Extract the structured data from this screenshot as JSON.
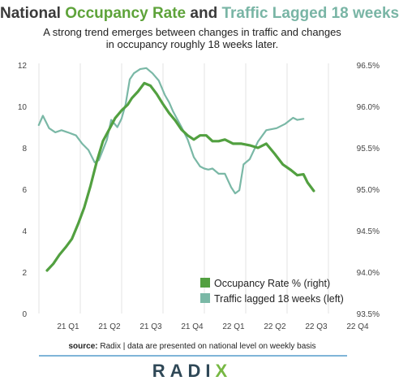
{
  "header": {
    "title_part1": "National ",
    "title_part2": "Occupancy Rate",
    "title_part3": " and ",
    "title_part4": "Traffic Lagged 18 weeks",
    "subtitle_line1": "A strong trend emerges between changes in traffic and changes",
    "subtitle_line2": "in occupancy roughly 18 weeks later."
  },
  "colors": {
    "occupancy": "#52a040",
    "traffic": "#7ab8a6",
    "title_occupancy": "#5ea33a",
    "title_traffic": "#79b5a5",
    "rule": "#7fb5d8",
    "grid": "#e3e3e3"
  },
  "chart_data": {
    "type": "line",
    "title": "National Occupancy Rate and Traffic Lagged 18 weeks",
    "x_categories": [
      "21 Q1",
      "21 Q2",
      "21 Q3",
      "21 Q4",
      "22 Q1",
      "22 Q2",
      "22 Q3",
      "22 Q4"
    ],
    "left_axis": {
      "ticks": [
        "0",
        "2",
        "4",
        "6",
        "8",
        "10",
        "12"
      ],
      "ylim": [
        0,
        12
      ]
    },
    "right_axis": {
      "ticks": [
        "93.5%",
        "94.0%",
        "94.5%",
        "95.0%",
        "95.5%",
        "96.0%",
        "96.5%"
      ],
      "ylim": [
        93.5,
        96.5
      ]
    },
    "grid": "vertical",
    "legend_position": "bottom-right",
    "series": [
      {
        "name": "Occupancy Rate % (right)",
        "axis": "right",
        "x": [
          0,
          0.15,
          0.3,
          0.45,
          0.6,
          0.75,
          0.9,
          1.05,
          1.2,
          1.35,
          1.5,
          1.65,
          1.8,
          1.95,
          2.05,
          2.2,
          2.35,
          2.5,
          2.65,
          2.8,
          2.95,
          3.1,
          3.25,
          3.4,
          3.55,
          3.7,
          3.85,
          4.0,
          4.15,
          4.3,
          4.5,
          4.7,
          4.9,
          5.1,
          5.3,
          5.5,
          5.7,
          5.9,
          6.05,
          6.2,
          6.3,
          6.45
        ],
        "values": [
          94.02,
          94.1,
          94.21,
          94.3,
          94.4,
          94.58,
          94.78,
          95.04,
          95.33,
          95.58,
          95.72,
          95.86,
          95.95,
          96.02,
          96.1,
          96.18,
          96.28,
          96.25,
          96.15,
          96.03,
          95.92,
          95.83,
          95.72,
          95.65,
          95.6,
          95.65,
          95.65,
          95.58,
          95.58,
          95.6,
          95.55,
          95.55,
          95.53,
          95.5,
          95.55,
          95.43,
          95.3,
          95.23,
          95.17,
          95.18,
          95.08,
          94.98
        ]
      },
      {
        "name": "Traffic lagged 18 weeks (left)",
        "axis": "left",
        "x": [
          -0.2,
          -0.1,
          0.05,
          0.2,
          0.35,
          0.5,
          0.7,
          0.85,
          1.0,
          1.15,
          1.25,
          1.35,
          1.45,
          1.55,
          1.7,
          1.8,
          1.9,
          2.0,
          2.1,
          2.25,
          2.4,
          2.55,
          2.7,
          2.85,
          2.95,
          3.05,
          3.25,
          3.4,
          3.55,
          3.7,
          3.8,
          3.9,
          4.0,
          4.15,
          4.3,
          4.45,
          4.55,
          4.65,
          4.75,
          4.9,
          5.1,
          5.3,
          5.55,
          5.75,
          5.95,
          6.05,
          6.2
        ],
        "values": [
          9.1,
          9.55,
          8.95,
          8.75,
          8.85,
          8.75,
          8.6,
          8.2,
          7.9,
          7.3,
          7.4,
          7.9,
          8.4,
          9.35,
          9.0,
          9.4,
          10.1,
          11.3,
          11.6,
          11.8,
          11.85,
          11.6,
          11.25,
          10.55,
          10.2,
          9.75,
          9.0,
          8.4,
          7.55,
          7.1,
          7.0,
          6.95,
          7.0,
          6.75,
          6.75,
          6.1,
          5.8,
          5.95,
          7.2,
          7.45,
          8.3,
          8.85,
          8.95,
          9.15,
          9.45,
          9.35,
          9.4
        ]
      }
    ]
  }
}
